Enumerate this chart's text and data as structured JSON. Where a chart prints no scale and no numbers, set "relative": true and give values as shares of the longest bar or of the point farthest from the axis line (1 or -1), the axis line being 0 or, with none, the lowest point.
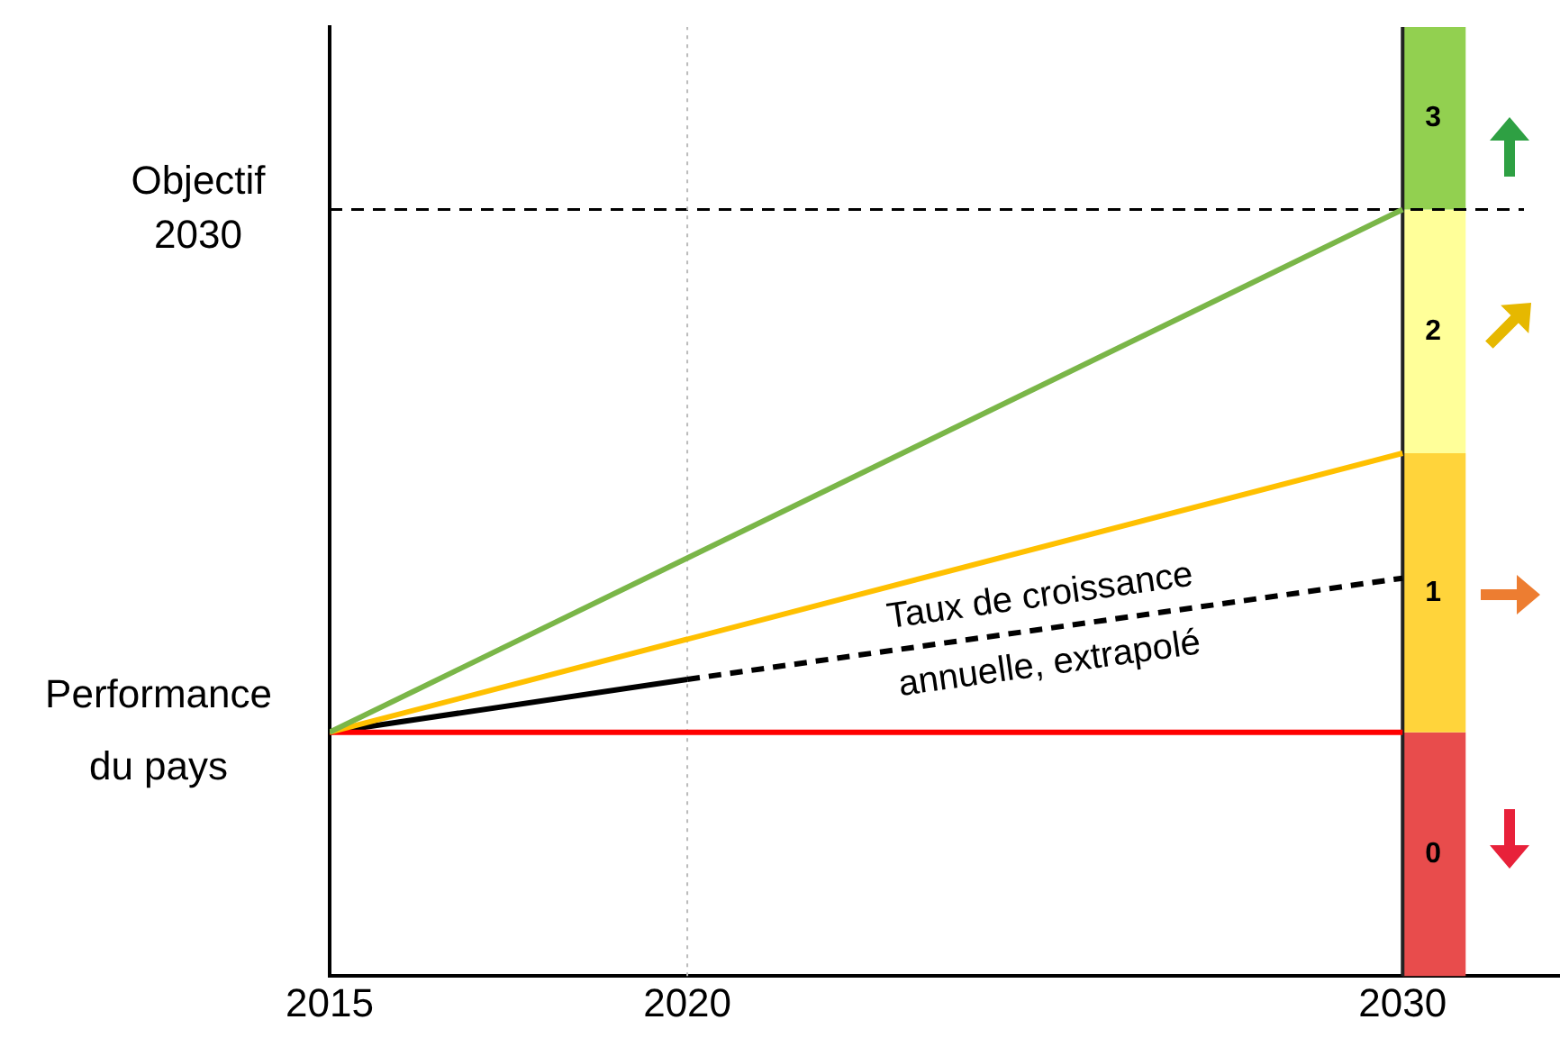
{
  "chart_data": {
    "type": "line",
    "relative": true,
    "x": [
      2015,
      2030
    ],
    "xlim": [
      2015,
      2032.2
    ],
    "xticks": [
      2015,
      2020,
      2030
    ],
    "grid": false,
    "legend": false,
    "marker": "none",
    "series": [
      {
        "color": "#7ab648",
        "values": [
          0.318,
          1
        ]
      },
      {
        "color": "#ffc000",
        "values": [
          0.318,
          0.682
        ]
      },
      {
        "color": "#ff0000",
        "values": [
          0.318,
          0.318
        ]
      },
      {
        "color": "#000000",
        "x": [
          2015,
          2020
        ],
        "values": [
          0.318,
          0.387
        ]
      },
      {
        "color": "#000000",
        "x": [
          2020,
          2030
        ],
        "values": [
          0.387,
          0.519
        ],
        "line_style": "dashed"
      }
    ],
    "ref_lines": [
      {
        "axis": "y",
        "value": 1,
        "label": "Objectif 2030",
        "color": "#000000",
        "line_style": "dashed"
      },
      {
        "axis": "x",
        "value": 2020,
        "color": "#bbbbbb",
        "line_style": "dotted"
      },
      {
        "axis": "x",
        "value": 2030,
        "color": "#222222",
        "line_style": "solid"
      }
    ],
    "bands": [
      {
        "axis": "y",
        "from": 0,
        "to": 0.318,
        "label": "0",
        "color": "#e84c4c"
      },
      {
        "axis": "y",
        "from": 0.318,
        "to": 0.682,
        "label": "1",
        "color": "#ffd43b"
      },
      {
        "axis": "y",
        "from": 0.682,
        "to": 1,
        "label": "2",
        "color": "#ffff99"
      },
      {
        "axis": "y",
        "from": 1,
        "to": 1.238,
        "label": "3",
        "color": "#92d050"
      }
    ],
    "annotations": [
      {
        "text": "Performance du pays",
        "x": 2015,
        "y": 0.318
      },
      "Taux de croissance annuelle, extrapolé"
    ]
  }
}
